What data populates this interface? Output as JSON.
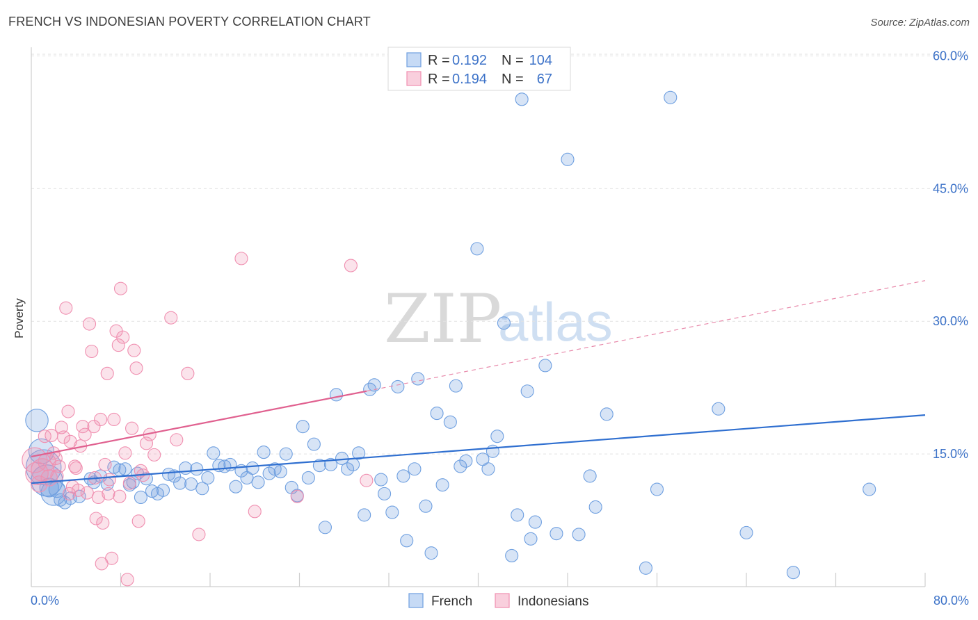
{
  "title": "FRENCH VS INDONESIAN POVERTY CORRELATION CHART",
  "source": "Source: ZipAtlas.com",
  "watermark": {
    "zip": "ZIP",
    "atlas": "atlas"
  },
  "colors": {
    "french": "#6e9fe0",
    "french_line": "#2f6fd0",
    "indonesians": "#f08fb0",
    "indonesians_line": "#e0608f",
    "tick": "#3c72c8"
  },
  "legend": {
    "rows": [
      {
        "r_label": "R =",
        "r_value": "0.192",
        "n_label": "N =",
        "n_value": "104"
      },
      {
        "r_label": "R =",
        "r_value": "0.194",
        "n_label": "N =",
        "n_value": "67"
      }
    ]
  },
  "bottom_legend": [
    "French",
    "Indonesians"
  ],
  "chart_data": {
    "type": "scatter",
    "title": "FRENCH VS INDONESIAN POVERTY CORRELATION CHART",
    "xlabel": "",
    "ylabel": "Poverty",
    "xlim": [
      0,
      80
    ],
    "ylim": [
      0,
      60
    ],
    "x_tick_labels": [
      "0.0%",
      "80.0%"
    ],
    "y_ticks": [
      15,
      30,
      45,
      60
    ],
    "y_tick_labels": [
      "15.0%",
      "30.0%",
      "45.0%",
      "60.0%"
    ],
    "grid": true,
    "legend_position": "top-center",
    "series": [
      {
        "name": "French",
        "r": 0.192,
        "n": 104,
        "trend": {
          "x": [
            0,
            80
          ],
          "y": [
            11.7,
            19.4
          ]
        },
        "points": [
          [
            0.5,
            18.8,
            1.8
          ],
          [
            0.9,
            15.3,
            2
          ],
          [
            1.1,
            13.5,
            2.8
          ],
          [
            1.4,
            12,
            2.5
          ],
          [
            1.6,
            11.2,
            1.5
          ],
          [
            2.0,
            10.6,
            2
          ],
          [
            2.3,
            11,
            1.3
          ],
          [
            2.6,
            9.8,
            1
          ],
          [
            3.0,
            9.5,
            1
          ],
          [
            3.5,
            10,
            1
          ],
          [
            4.3,
            10.2,
            1
          ],
          [
            5.3,
            12.2,
            1
          ],
          [
            5.6,
            11.8,
            1
          ],
          [
            6.2,
            12.5,
            1
          ],
          [
            6.8,
            11.6,
            1
          ],
          [
            7.4,
            13.5,
            1
          ],
          [
            7.9,
            13.2,
            1
          ],
          [
            8.4,
            13.3,
            1
          ],
          [
            8.8,
            11.5,
            1
          ],
          [
            9.1,
            11.8,
            1
          ],
          [
            9.5,
            12.8,
            1
          ],
          [
            9.8,
            10.1,
            1
          ],
          [
            10.3,
            12.2,
            1
          ],
          [
            10.8,
            10.8,
            1
          ],
          [
            11.3,
            10.5,
            1
          ],
          [
            11.8,
            10.9,
            1
          ],
          [
            12.3,
            12.7,
            1
          ],
          [
            12.8,
            12.5,
            1
          ],
          [
            13.3,
            11.7,
            1
          ],
          [
            13.8,
            13.4,
            1
          ],
          [
            14.3,
            11.6,
            1
          ],
          [
            14.8,
            13.3,
            1
          ],
          [
            15.3,
            11.1,
            1
          ],
          [
            15.8,
            12.3,
            1
          ],
          [
            16.3,
            15.1,
            1
          ],
          [
            16.8,
            13.7,
            1
          ],
          [
            17.3,
            13.6,
            1
          ],
          [
            17.8,
            13.8,
            1
          ],
          [
            18.3,
            11.3,
            1
          ],
          [
            18.8,
            13.1,
            1
          ],
          [
            19.3,
            12.3,
            1
          ],
          [
            19.8,
            13.4,
            1
          ],
          [
            20.3,
            11.8,
            1
          ],
          [
            20.8,
            15.2,
            1
          ],
          [
            21.3,
            12.8,
            1
          ],
          [
            21.8,
            13.3,
            1
          ],
          [
            22.3,
            13,
            1
          ],
          [
            22.8,
            15,
            1
          ],
          [
            23.3,
            11.2,
            1
          ],
          [
            23.8,
            10.3,
            1
          ],
          [
            24.3,
            18.1,
            1
          ],
          [
            24.8,
            12.3,
            1
          ],
          [
            25.3,
            16.1,
            1
          ],
          [
            25.8,
            13.7,
            1
          ],
          [
            26.3,
            6.7,
            1
          ],
          [
            26.8,
            13.8,
            1
          ],
          [
            27.3,
            21.7,
            1
          ],
          [
            27.8,
            14.5,
            1
          ],
          [
            28.3,
            13.3,
            1
          ],
          [
            28.8,
            13.8,
            1
          ],
          [
            29.3,
            15.1,
            1
          ],
          [
            29.8,
            8.1,
            1
          ],
          [
            30.3,
            22.3,
            1
          ],
          [
            30.7,
            22.8,
            1
          ],
          [
            31.3,
            12.1,
            1
          ],
          [
            31.6,
            10.5,
            1
          ],
          [
            32.3,
            8.4,
            1
          ],
          [
            32.8,
            22.6,
            1
          ],
          [
            33.3,
            12.5,
            1
          ],
          [
            33.6,
            5.2,
            1
          ],
          [
            34.3,
            13.3,
            1
          ],
          [
            34.6,
            23.5,
            1
          ],
          [
            35.3,
            9.1,
            1
          ],
          [
            35.8,
            3.8,
            1
          ],
          [
            36.3,
            19.6,
            1
          ],
          [
            36.8,
            11.5,
            1
          ],
          [
            37.5,
            18.6,
            1
          ],
          [
            38.0,
            22.7,
            1
          ],
          [
            38.4,
            13.6,
            1
          ],
          [
            38.9,
            14.2,
            1
          ],
          [
            39.9,
            38.2,
            1
          ],
          [
            40.4,
            14.4,
            1
          ],
          [
            40.9,
            13.3,
            1
          ],
          [
            41.3,
            15.3,
            1
          ],
          [
            41.7,
            17,
            1
          ],
          [
            42.3,
            29.8,
            1
          ],
          [
            43.0,
            3.5,
            1
          ],
          [
            43.5,
            8.1,
            1
          ],
          [
            43.9,
            55.1,
            1
          ],
          [
            44.4,
            22.1,
            1
          ],
          [
            44.7,
            5.4,
            1
          ],
          [
            45.1,
            7.3,
            1
          ],
          [
            46.0,
            25,
            1
          ],
          [
            47.0,
            6,
            1
          ],
          [
            48.0,
            48.3,
            1
          ],
          [
            49.0,
            5.9,
            1
          ],
          [
            50.0,
            12.5,
            1
          ],
          [
            50.5,
            9,
            1
          ],
          [
            51.5,
            19.5,
            1
          ],
          [
            55.0,
            2.1,
            1
          ],
          [
            56.0,
            11,
            1
          ],
          [
            57.2,
            55.3,
            1
          ],
          [
            61.5,
            20.1,
            1
          ],
          [
            64.0,
            6.1,
            1
          ],
          [
            68.2,
            1.6,
            1
          ],
          [
            75.0,
            11,
            1
          ]
        ]
      },
      {
        "name": "Indonesians",
        "r": 0.194,
        "n": 67,
        "trend": {
          "x": [
            0,
            30
          ],
          "y": [
            14.7,
            22.1
          ]
        },
        "trend_dashed": {
          "x": [
            30,
            80
          ],
          "y": [
            22.1,
            34.6
          ]
        },
        "points": [
          [
            0.3,
            14.3,
            2
          ],
          [
            0.5,
            12.8,
            1.8
          ],
          [
            0.7,
            11.6,
            1.3
          ],
          [
            1.0,
            13.2,
            1.8
          ],
          [
            1.2,
            17,
            1
          ],
          [
            1.4,
            14.1,
            1.4
          ],
          [
            1.6,
            12.3,
            1.3
          ],
          [
            1.8,
            17.1,
            1
          ],
          [
            2.0,
            15.1,
            1
          ],
          [
            2.2,
            14.5,
            1
          ],
          [
            2.5,
            13.6,
            1
          ],
          [
            2.7,
            18,
            1
          ],
          [
            2.9,
            16.9,
            1
          ],
          [
            3.1,
            31.5,
            1
          ],
          [
            3.3,
            19.8,
            1
          ],
          [
            3.5,
            16.4,
            1
          ],
          [
            3.7,
            11.3,
            1
          ],
          [
            3.9,
            13.6,
            1
          ],
          [
            4.2,
            10.9,
            1
          ],
          [
            4.4,
            15.9,
            1
          ],
          [
            4.6,
            18.1,
            1
          ],
          [
            4.8,
            17.2,
            1
          ],
          [
            5.0,
            10.6,
            1
          ],
          [
            5.2,
            29.7,
            1
          ],
          [
            5.4,
            26.6,
            1
          ],
          [
            5.6,
            18.1,
            1
          ],
          [
            5.8,
            7.7,
            1
          ],
          [
            6.0,
            10.1,
            1
          ],
          [
            6.2,
            18.9,
            1
          ],
          [
            6.4,
            7.2,
            1
          ],
          [
            6.6,
            13.8,
            1
          ],
          [
            6.8,
            24.1,
            1
          ],
          [
            7.0,
            12.1,
            1
          ],
          [
            7.2,
            3.2,
            1
          ],
          [
            7.4,
            18.9,
            1
          ],
          [
            7.6,
            28.9,
            1
          ],
          [
            7.8,
            27.3,
            1
          ],
          [
            8.0,
            33.7,
            1
          ],
          [
            8.2,
            28.2,
            1
          ],
          [
            8.4,
            15.1,
            1
          ],
          [
            8.6,
            0.8,
            1
          ],
          [
            8.8,
            11.7,
            1
          ],
          [
            9.0,
            17.9,
            1
          ],
          [
            9.2,
            26.7,
            1
          ],
          [
            9.4,
            24.7,
            1
          ],
          [
            9.6,
            7.4,
            1
          ],
          [
            9.8,
            13.1,
            1
          ],
          [
            10.0,
            12.6,
            1
          ],
          [
            10.3,
            16.2,
            1
          ],
          [
            10.6,
            17.2,
            1
          ],
          [
            11.0,
            14.9,
            1
          ],
          [
            12.5,
            30.4,
            1
          ],
          [
            13.0,
            16.6,
            1
          ],
          [
            14.0,
            24.1,
            1
          ],
          [
            15.0,
            5.9,
            1
          ],
          [
            18.8,
            37.1,
            1
          ],
          [
            20.0,
            8.5,
            1
          ],
          [
            23.8,
            10.2,
            1
          ],
          [
            28.6,
            36.3,
            1
          ],
          [
            30.0,
            12,
            1
          ],
          [
            6.3,
            2.6,
            1
          ],
          [
            4.0,
            13.4,
            1
          ],
          [
            3.4,
            10.5,
            1
          ],
          [
            2.3,
            12.5,
            1
          ],
          [
            5.7,
            12.3,
            1
          ],
          [
            7.9,
            10.2,
            1
          ],
          [
            6.9,
            10.5,
            1
          ]
        ]
      }
    ]
  }
}
